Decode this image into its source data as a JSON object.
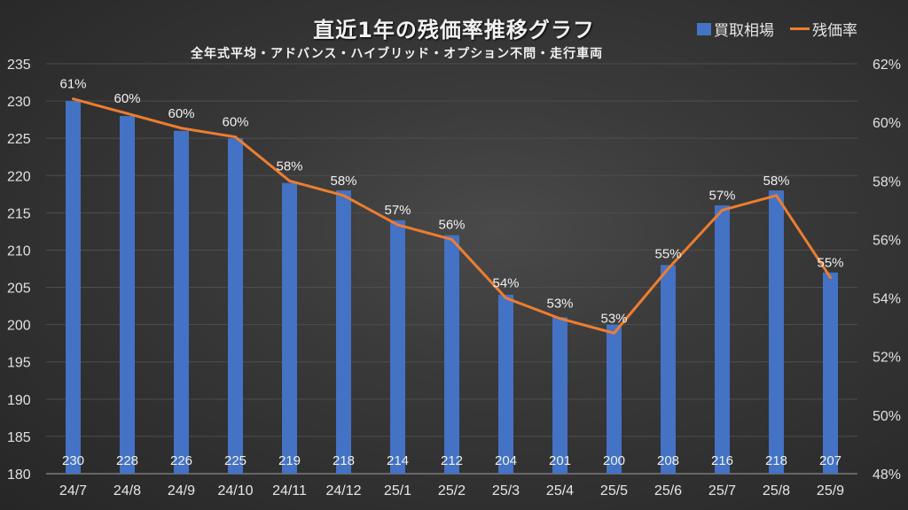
{
  "chart_data": {
    "type": "bar+line",
    "title": "直近1年の残価率推移グラフ",
    "subtitle": "全年式平均・アドバンス・ハイブリッド・オプション不問・走行車両",
    "categories": [
      "24/7",
      "24/8",
      "24/9",
      "24/10",
      "24/11",
      "24/12",
      "25/1",
      "25/2",
      "25/3",
      "25/4",
      "25/5",
      "25/6",
      "25/7",
      "25/8",
      "25/9"
    ],
    "series": [
      {
        "name": "買取相場",
        "type": "bar",
        "axis": "left",
        "color": "#4472c4",
        "values": [
          230,
          228,
          226,
          225,
          219,
          218,
          214,
          212,
          204,
          201,
          200,
          208,
          216,
          218,
          207
        ],
        "labels": [
          "230",
          "228",
          "226",
          "225",
          "219",
          "218",
          "214",
          "212",
          "204",
          "201",
          "200",
          "208",
          "216",
          "218",
          "207"
        ]
      },
      {
        "name": "残価率",
        "type": "line",
        "axis": "right",
        "color": "#ed7d31",
        "values": [
          60.8,
          60.3,
          59.8,
          59.5,
          58.0,
          57.5,
          56.5,
          56.0,
          54.0,
          53.3,
          52.8,
          55.0,
          57.0,
          57.5,
          54.7
        ],
        "labels": [
          "61%",
          "60%",
          "60%",
          "60%",
          "58%",
          "58%",
          "57%",
          "56%",
          "54%",
          "53%",
          "53%",
          "55%",
          "57%",
          "58%",
          "55%"
        ]
      }
    ],
    "y_left": {
      "min": 180,
      "max": 235,
      "step": 5,
      "ticks": [
        "180",
        "185",
        "190",
        "195",
        "200",
        "205",
        "210",
        "215",
        "220",
        "225",
        "230",
        "235"
      ]
    },
    "y_right": {
      "min": 48,
      "max": 62,
      "step": 2,
      "ticks": [
        "48%",
        "50%",
        "52%",
        "54%",
        "56%",
        "58%",
        "60%",
        "62%"
      ]
    },
    "grid": true,
    "legend_position": "top-right",
    "xlabel": "",
    "ylabel": ""
  }
}
